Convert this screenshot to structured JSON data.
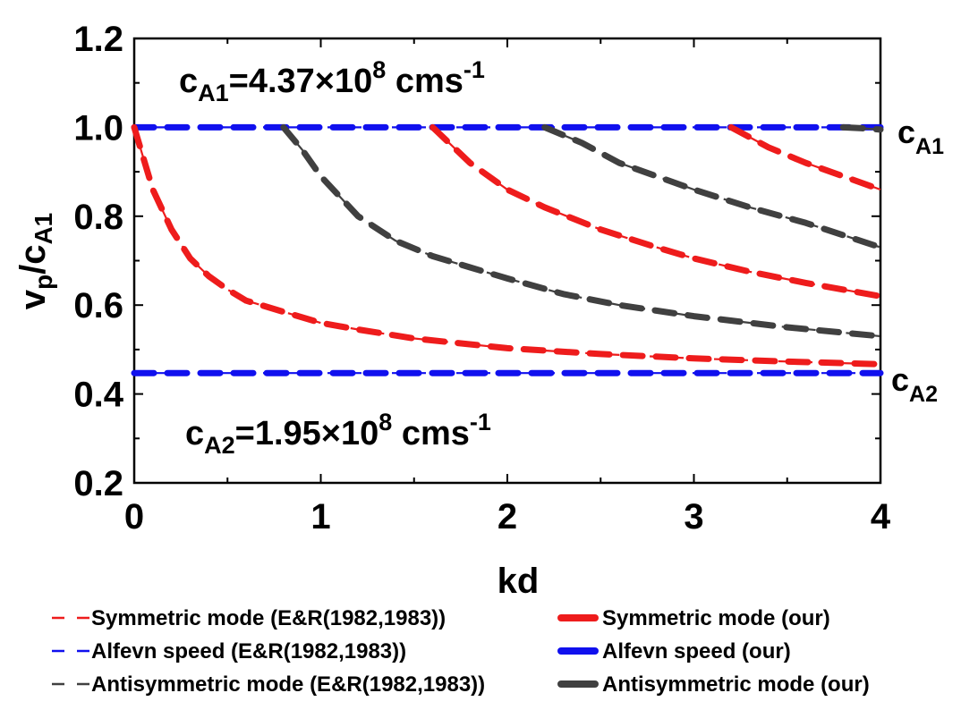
{
  "chart_data": {
    "type": "line",
    "xlabel": "kd",
    "ylabel": {
      "main": "v",
      "sub1": "p",
      "slash": "/c",
      "sub2": "A1"
    },
    "xlim": [
      0,
      4
    ],
    "ylim": [
      0.2,
      1.2
    ],
    "xticks": [
      "0",
      "1",
      "2",
      "3",
      "4"
    ],
    "yticks": [
      "0.2",
      "0.4",
      "0.6",
      "0.8",
      "1.0",
      "1.2"
    ],
    "annotations": [
      {
        "id": "ca1-value",
        "parts": [
          "c",
          "A1",
          "=4.37×10",
          "8",
          " cms",
          "-1"
        ]
      },
      {
        "id": "ca2-value",
        "parts": [
          "c",
          "A2",
          "=1.95×10",
          "8",
          " cms",
          "-1"
        ]
      },
      {
        "id": "ca1-edge",
        "parts": [
          "c",
          "A1"
        ]
      },
      {
        "id": "ca2-edge",
        "parts": [
          "c",
          "A2"
        ]
      }
    ],
    "colors": {
      "red": "#ee1c1c",
      "blue": "#1010ee",
      "gray": "#404040"
    },
    "legend": [
      {
        "label": "Symmetric mode (E&R(1982,1983))",
        "color": "#ee1c1c",
        "style": "dashed"
      },
      {
        "label": "Symmetric mode (our)",
        "color": "#ee1c1c",
        "style": "solid"
      },
      {
        "label": "Alfevn speed (E&R(1982,1983))",
        "color": "#1010ee",
        "style": "dashed"
      },
      {
        "label": "Alfevn speed (our)",
        "color": "#1010ee",
        "style": "solid"
      },
      {
        "label": "Antisymmetric mode (E&R(1982,1983))",
        "color": "#404040",
        "style": "dashed"
      },
      {
        "label": "Antisymmetric mode (our)",
        "color": "#404040",
        "style": "solid"
      }
    ],
    "series": [
      {
        "group": "alfven",
        "color": "#1010ee",
        "x": [
          0,
          4
        ],
        "y": [
          1.0,
          1.0
        ]
      },
      {
        "group": "alfven",
        "color": "#1010ee",
        "x": [
          0,
          4
        ],
        "y": [
          0.447,
          0.447
        ]
      },
      {
        "group": "symmetric",
        "color": "#ee1c1c",
        "x": [
          0,
          0.05,
          0.1,
          0.2,
          0.3,
          0.4,
          0.5,
          0.6,
          0.8,
          1.0,
          1.2,
          1.5,
          2.0,
          2.5,
          3.0,
          3.5,
          4.0
        ],
        "y": [
          1.0,
          0.93,
          0.86,
          0.77,
          0.705,
          0.665,
          0.635,
          0.61,
          0.585,
          0.56,
          0.545,
          0.525,
          0.503,
          0.49,
          0.48,
          0.473,
          0.467
        ]
      },
      {
        "group": "symmetric",
        "color": "#ee1c1c",
        "x": [
          1.6,
          1.8,
          2.0,
          2.2,
          2.5,
          2.8,
          3.0,
          3.3,
          3.6,
          4.0
        ],
        "y": [
          1.0,
          0.92,
          0.86,
          0.82,
          0.77,
          0.73,
          0.705,
          0.675,
          0.65,
          0.62
        ]
      },
      {
        "group": "symmetric",
        "color": "#ee1c1c",
        "x": [
          3.2,
          3.4,
          3.6,
          3.8,
          4.0
        ],
        "y": [
          1.0,
          0.955,
          0.92,
          0.89,
          0.86
        ]
      },
      {
        "group": "antisymmetric",
        "color": "#404040",
        "x": [
          0.8,
          0.9,
          1.0,
          1.2,
          1.4,
          1.6,
          1.8,
          2.0,
          2.3,
          2.6,
          3.0,
          3.5,
          4.0
        ],
        "y": [
          1.0,
          0.95,
          0.89,
          0.8,
          0.745,
          0.71,
          0.685,
          0.66,
          0.625,
          0.6,
          0.575,
          0.55,
          0.53
        ]
      },
      {
        "group": "antisymmetric",
        "color": "#404040",
        "x": [
          2.2,
          2.4,
          2.6,
          2.8,
          3.0,
          3.3,
          3.6,
          4.0
        ],
        "y": [
          1.0,
          0.965,
          0.92,
          0.89,
          0.86,
          0.82,
          0.785,
          0.73
        ]
      },
      {
        "group": "antisymmetric",
        "color": "#404040",
        "x": [
          3.8,
          3.9,
          4.0
        ],
        "y": [
          1.0,
          0.998,
          0.995
        ]
      }
    ]
  }
}
